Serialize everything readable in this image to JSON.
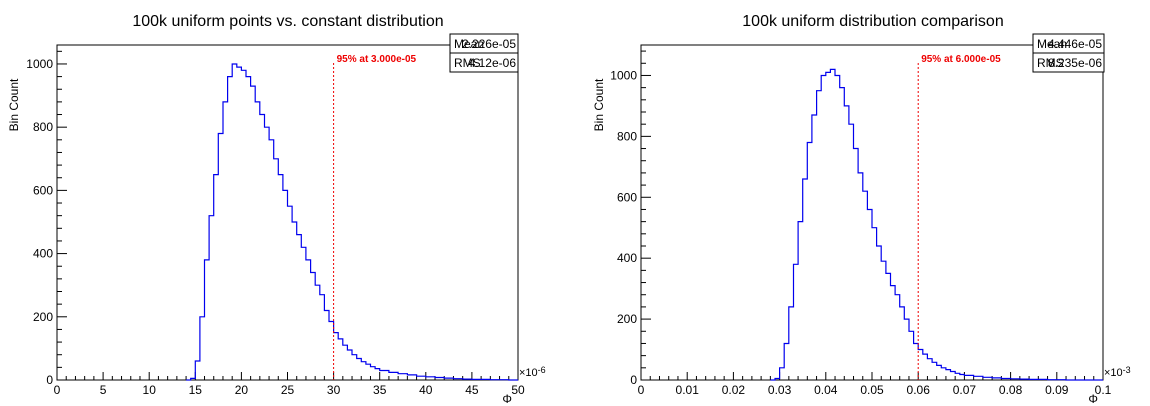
{
  "chart_data": [
    {
      "type": "histogram-step",
      "title": "100k uniform points vs. constant distribution",
      "xlabel": "Φ",
      "ylabel": "Bin Count",
      "xlim": [
        0,
        50
      ],
      "ylim": [
        0,
        1060
      ],
      "x_ticks": [
        0,
        5,
        10,
        15,
        20,
        25,
        30,
        35,
        40,
        45,
        50
      ],
      "x_tick_labels": [
        "0",
        "5",
        "10",
        "15",
        "20",
        "25",
        "30",
        "35",
        "40",
        "45",
        "50"
      ],
      "x_exponent": "×10",
      "x_exponent_power": "-6",
      "y_ticks": [
        0,
        200,
        400,
        600,
        800,
        1000
      ],
      "y_tick_labels": [
        "0",
        "200",
        "400",
        "600",
        "800",
        "1000"
      ],
      "grid": false,
      "series": [
        {
          "color": "#0000ee",
          "x": [
            14.0,
            14.5,
            15.0,
            15.5,
            16.0,
            16.5,
            17.0,
            17.5,
            18.0,
            18.5,
            19.0,
            19.5,
            20.0,
            20.5,
            21.0,
            21.5,
            22.0,
            22.5,
            23.0,
            23.5,
            24.0,
            24.5,
            25.0,
            25.5,
            26.0,
            26.5,
            27.0,
            27.5,
            28.0,
            28.5,
            29.0,
            29.5,
            30.0,
            30.5,
            31.0,
            31.5,
            32.0,
            32.5,
            33.0,
            33.5,
            34.0,
            34.5,
            35.0,
            36.0,
            37.0,
            38.0,
            39.0,
            40.0,
            41.0,
            42.0,
            43.0,
            44.0,
            45.0,
            46.0,
            47.0,
            48.0,
            49.0,
            50.0
          ],
          "y": [
            0,
            5,
            60,
            200,
            380,
            520,
            650,
            780,
            880,
            960,
            1000,
            990,
            980,
            960,
            930,
            880,
            840,
            800,
            760,
            700,
            650,
            600,
            550,
            500,
            460,
            420,
            380,
            340,
            300,
            270,
            220,
            185,
            150,
            130,
            110,
            95,
            80,
            68,
            58,
            50,
            42,
            36,
            30,
            24,
            20,
            16,
            12,
            10,
            8,
            6,
            4,
            3,
            2,
            2,
            1,
            1,
            0,
            0
          ]
        }
      ],
      "marker": {
        "x": 30,
        "label": "95% at 3.000e-05",
        "color": "#ee0000"
      },
      "stats": {
        "mean_label": "Mean",
        "mean": "2.226e-05",
        "rms_label": "RMS",
        "rms": "4.12e-06"
      }
    },
    {
      "type": "histogram-step",
      "title": "100k uniform distribution comparison",
      "xlabel": "Φ",
      "ylabel": "Bin Count",
      "xlim": [
        0,
        0.1
      ],
      "ylim": [
        0,
        1100
      ],
      "x_ticks": [
        0,
        0.01,
        0.02,
        0.03,
        0.04,
        0.05,
        0.06,
        0.07,
        0.08,
        0.09,
        0.1
      ],
      "x_tick_labels": [
        "0",
        "0.01",
        "0.02",
        "0.03",
        "0.04",
        "0.05",
        "0.06",
        "0.07",
        "0.08",
        "0.09",
        "0.1"
      ],
      "x_exponent": "×10",
      "x_exponent_power": "-3",
      "y_ticks": [
        0,
        200,
        400,
        600,
        800,
        1000
      ],
      "y_tick_labels": [
        "0",
        "200",
        "400",
        "600",
        "800",
        "1000"
      ],
      "grid": false,
      "series": [
        {
          "color": "#0000ee",
          "x": [
            0.028,
            0.029,
            0.03,
            0.031,
            0.032,
            0.033,
            0.034,
            0.035,
            0.036,
            0.037,
            0.038,
            0.039,
            0.04,
            0.041,
            0.042,
            0.043,
            0.044,
            0.045,
            0.046,
            0.047,
            0.048,
            0.049,
            0.05,
            0.051,
            0.052,
            0.053,
            0.054,
            0.055,
            0.056,
            0.057,
            0.058,
            0.059,
            0.06,
            0.061,
            0.062,
            0.063,
            0.064,
            0.065,
            0.066,
            0.067,
            0.068,
            0.069,
            0.07,
            0.072,
            0.074,
            0.076,
            0.078,
            0.08,
            0.082,
            0.084,
            0.086,
            0.088,
            0.09,
            0.092,
            0.094,
            0.096,
            0.098,
            0.1
          ],
          "y": [
            0,
            5,
            40,
            120,
            240,
            380,
            520,
            660,
            780,
            870,
            950,
            1000,
            1010,
            1020,
            1000,
            960,
            900,
            840,
            760,
            680,
            620,
            560,
            500,
            440,
            390,
            350,
            310,
            280,
            240,
            200,
            160,
            120,
            100,
            85,
            70,
            58,
            48,
            40,
            34,
            28,
            22,
            18,
            15,
            12,
            9,
            7,
            5,
            4,
            3,
            2,
            2,
            1,
            1,
            0,
            0,
            0,
            0,
            0
          ]
        }
      ],
      "marker": {
        "x": 0.06,
        "label": "95% at 6.000e-05",
        "color": "#ee0000"
      },
      "stats": {
        "mean_label": "Mean",
        "mean": "4.446e-05",
        "rms_label": "RMS",
        "rms": "8.235e-06"
      }
    }
  ]
}
